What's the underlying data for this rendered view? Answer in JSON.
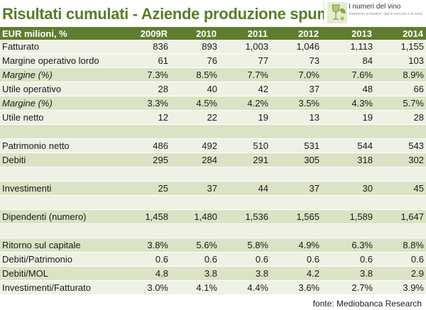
{
  "title": "Risultati cumulati - Aziende produzione spumante",
  "logo": {
    "name": "I numeri del vino",
    "tagline": "Statistiche produttive, dati di mercato e di consumo",
    "mark_icon": "wine-glass-leaf-icon"
  },
  "colors": {
    "header": "#607c2e",
    "title": "#5e7a2c",
    "row_light": "#eef1e4",
    "row_dark": "#dbe3c5"
  },
  "table": {
    "headers": [
      "EUR milioni, %",
      "2009R",
      "2010",
      "2011",
      "2012",
      "2013",
      "2014"
    ],
    "rows": [
      {
        "label": "Fatturato",
        "values": [
          "836",
          "893",
          "1,003",
          "1,046",
          "1,113",
          "1,155"
        ],
        "italic": false,
        "shade": "light"
      },
      {
        "label": "Margine operativo lordo",
        "values": [
          "61",
          "76",
          "77",
          "73",
          "84",
          "103"
        ],
        "italic": false,
        "shade": "light"
      },
      {
        "label": "Margine (%)",
        "values": [
          "7.3%",
          "8.5%",
          "7.7%",
          "7.0%",
          "7.6%",
          "8.9%"
        ],
        "italic": true,
        "shade": "dark"
      },
      {
        "label": "Utile operativo",
        "values": [
          "28",
          "40",
          "42",
          "37",
          "48",
          "66"
        ],
        "italic": false,
        "shade": "light"
      },
      {
        "label": "Margine (%)",
        "values": [
          "3.3%",
          "4.5%",
          "4.2%",
          "3.5%",
          "4.3%",
          "5.7%"
        ],
        "italic": true,
        "shade": "dark"
      },
      {
        "label": "Utile netto",
        "values": [
          "12",
          "22",
          "19",
          "13",
          "19",
          "28"
        ],
        "italic": false,
        "shade": "light"
      },
      {
        "label": "",
        "values": [
          "",
          "",
          "",
          "",
          "",
          ""
        ],
        "italic": false,
        "shade": "dark"
      },
      {
        "label": "Patrimonio netto",
        "values": [
          "486",
          "492",
          "510",
          "531",
          "544",
          "543"
        ],
        "italic": false,
        "shade": "light"
      },
      {
        "label": "Debiti",
        "values": [
          "295",
          "284",
          "291",
          "305",
          "318",
          "302"
        ],
        "italic": false,
        "shade": "dark"
      },
      {
        "label": "",
        "values": [
          "",
          "",
          "",
          "",
          "",
          ""
        ],
        "italic": false,
        "shade": "light"
      },
      {
        "label": "Investimenti",
        "values": [
          "25",
          "37",
          "44",
          "37",
          "30",
          "45"
        ],
        "italic": false,
        "shade": "dark"
      },
      {
        "label": "",
        "values": [
          "",
          "",
          "",
          "",
          "",
          ""
        ],
        "italic": false,
        "shade": "light"
      },
      {
        "label": "Dipendenti (numero)",
        "values": [
          "1,458",
          "1,480",
          "1,536",
          "1,565",
          "1,589",
          "1,647"
        ],
        "italic": false,
        "shade": "dark"
      },
      {
        "label": "",
        "values": [
          "",
          "",
          "",
          "",
          "",
          ""
        ],
        "italic": false,
        "shade": "light"
      },
      {
        "label": "Ritorno sul capitale",
        "values": [
          "3.8%",
          "5.6%",
          "5.8%",
          "4.9%",
          "6.3%",
          "8.8%"
        ],
        "italic": false,
        "shade": "dark"
      },
      {
        "label": "Debiti/Patrimonio",
        "values": [
          "0.6",
          "0.6",
          "0.6",
          "0.6",
          "0.6",
          "0.6"
        ],
        "italic": false,
        "shade": "light"
      },
      {
        "label": "Debiti/MOL",
        "values": [
          "4.8",
          "3.8",
          "3.8",
          "4.2",
          "3.8",
          "2.9"
        ],
        "italic": false,
        "shade": "dark"
      },
      {
        "label": "Investimenti/Fatturato",
        "values": [
          "3.0%",
          "4.1%",
          "4.4%",
          "3.6%",
          "2.7%",
          "3.9%"
        ],
        "italic": false,
        "shade": "light"
      }
    ]
  },
  "source": "fonte: Mediobanca Research"
}
